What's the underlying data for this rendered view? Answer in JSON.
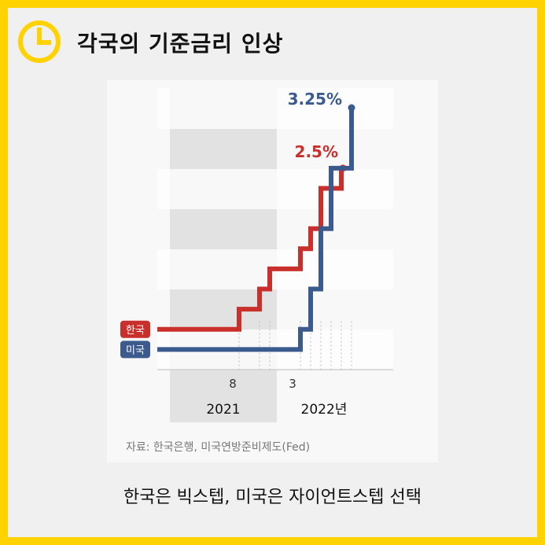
{
  "title": "각국의 기준금리 인상",
  "caption": "한국은 빅스텝, 미국은 자이언트스텝 선택",
  "source": "자료: 한국은행, 미국연방준비제도(Fed)",
  "colors": {
    "background": "#FFD200",
    "korea": "#C9302C",
    "us": "#3B5B8E",
    "shade2021": "#E2E2E2"
  },
  "chart_data": {
    "type": "line",
    "title": "각국의 기준금리 인상",
    "xlabel": "",
    "ylabel": "",
    "ylim": [
      0,
      3.5
    ],
    "x_ticks": [
      "8",
      "3"
    ],
    "year_labels": [
      "2021",
      "2022년"
    ],
    "series": [
      {
        "name": "한국",
        "end_label": "2.5%",
        "steps": [
          {
            "x": 0,
            "y": 0.5
          },
          {
            "x": 8,
            "y": 0.75
          },
          {
            "x": 10,
            "y": 1.0
          },
          {
            "x": 11,
            "y": 1.25
          },
          {
            "x": 14,
            "y": 1.5
          },
          {
            "x": 15,
            "y": 1.75
          },
          {
            "x": 16,
            "y": 2.25
          },
          {
            "x": 18,
            "y": 2.5
          }
        ]
      },
      {
        "name": "미국",
        "end_label": "3.25%",
        "steps": [
          {
            "x": 0,
            "y": 0.25
          },
          {
            "x": 14,
            "y": 0.5
          },
          {
            "x": 15,
            "y": 1.0
          },
          {
            "x": 16,
            "y": 1.75
          },
          {
            "x": 17,
            "y": 2.5
          },
          {
            "x": 19,
            "y": 3.25
          }
        ]
      }
    ]
  }
}
